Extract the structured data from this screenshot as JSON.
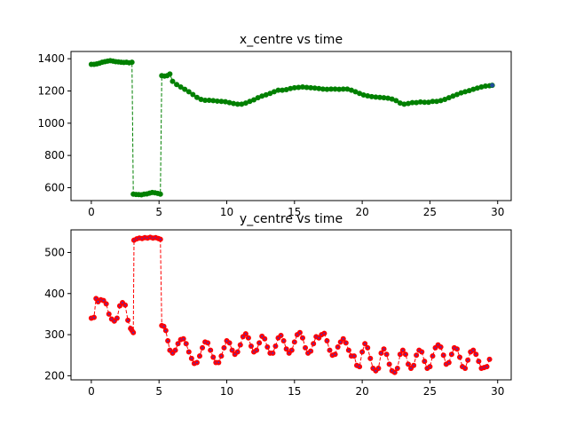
{
  "chart_data": [
    {
      "type": "scatter",
      "title": "x_centre vs time",
      "xlabel": "",
      "ylabel": "",
      "xlim": [
        -1.5,
        31.0
      ],
      "ylim": [
        520,
        1445
      ],
      "xticks": [
        0,
        5,
        10,
        15,
        20,
        25,
        30
      ],
      "yticks": [
        600,
        800,
        1000,
        1200,
        1400
      ],
      "grid": false,
      "colors": {
        "points": "#008000",
        "line": "#008000",
        "end_marker": "#1f4e9c"
      },
      "series": [
        {
          "points": [
            [
              0.0,
              1365
            ],
            [
              0.2,
              1365
            ],
            [
              0.4,
              1368
            ],
            [
              0.6,
              1372
            ],
            [
              0.8,
              1378
            ],
            [
              1.0,
              1382
            ],
            [
              1.2,
              1385
            ],
            [
              1.4,
              1388
            ],
            [
              1.6,
              1385
            ],
            [
              1.8,
              1382
            ],
            [
              2.0,
              1380
            ],
            [
              2.2,
              1378
            ],
            [
              2.4,
              1377
            ],
            [
              2.6,
              1378
            ],
            [
              2.8,
              1375
            ],
            [
              3.0,
              1378
            ],
            [
              3.1,
              560
            ],
            [
              3.3,
              558
            ],
            [
              3.5,
              557
            ],
            [
              3.7,
              556
            ],
            [
              3.9,
              560
            ],
            [
              4.1,
              561
            ],
            [
              4.3,
              566
            ],
            [
              4.5,
              570
            ],
            [
              4.7,
              568
            ],
            [
              4.9,
              565
            ],
            [
              5.1,
              560
            ],
            [
              5.2,
              1295
            ],
            [
              5.4,
              1292
            ],
            [
              5.6,
              1295
            ],
            [
              5.8,
              1305
            ],
            [
              6.0,
              1260
            ],
            [
              6.3,
              1240
            ],
            [
              6.6,
              1225
            ],
            [
              6.9,
              1210
            ],
            [
              7.2,
              1195
            ],
            [
              7.5,
              1178
            ],
            [
              7.8,
              1160
            ],
            [
              8.1,
              1148
            ],
            [
              8.4,
              1142
            ],
            [
              8.7,
              1142
            ],
            [
              9.0,
              1140
            ],
            [
              9.3,
              1137
            ],
            [
              9.6,
              1135
            ],
            [
              9.9,
              1133
            ],
            [
              10.2,
              1128
            ],
            [
              10.5,
              1122
            ],
            [
              10.8,
              1118
            ],
            [
              11.1,
              1118
            ],
            [
              11.4,
              1125
            ],
            [
              11.7,
              1135
            ],
            [
              12.0,
              1145
            ],
            [
              12.3,
              1158
            ],
            [
              12.6,
              1168
            ],
            [
              12.9,
              1176
            ],
            [
              13.2,
              1185
            ],
            [
              13.5,
              1195
            ],
            [
              13.8,
              1205
            ],
            [
              14.1,
              1205
            ],
            [
              14.4,
              1208
            ],
            [
              14.7,
              1215
            ],
            [
              15.0,
              1220
            ],
            [
              15.3,
              1222
            ],
            [
              15.6,
              1225
            ],
            [
              15.9,
              1222
            ],
            [
              16.2,
              1220
            ],
            [
              16.5,
              1218
            ],
            [
              16.8,
              1215
            ],
            [
              17.1,
              1212
            ],
            [
              17.4,
              1210
            ],
            [
              17.7,
              1212
            ],
            [
              18.0,
              1212
            ],
            [
              18.3,
              1210
            ],
            [
              18.6,
              1212
            ],
            [
              18.9,
              1212
            ],
            [
              19.2,
              1205
            ],
            [
              19.5,
              1195
            ],
            [
              19.8,
              1185
            ],
            [
              20.1,
              1175
            ],
            [
              20.4,
              1170
            ],
            [
              20.7,
              1165
            ],
            [
              21.0,
              1162
            ],
            [
              21.3,
              1160
            ],
            [
              21.6,
              1158
            ],
            [
              21.9,
              1155
            ],
            [
              22.2,
              1150
            ],
            [
              22.5,
              1140
            ],
            [
              22.8,
              1125
            ],
            [
              23.1,
              1118
            ],
            [
              23.4,
              1122
            ],
            [
              23.7,
              1128
            ],
            [
              24.0,
              1128
            ],
            [
              24.3,
              1132
            ],
            [
              24.6,
              1130
            ],
            [
              24.9,
              1130
            ],
            [
              25.2,
              1135
            ],
            [
              25.5,
              1135
            ],
            [
              25.8,
              1140
            ],
            [
              26.1,
              1148
            ],
            [
              26.4,
              1158
            ],
            [
              26.7,
              1168
            ],
            [
              27.0,
              1178
            ],
            [
              27.3,
              1188
            ],
            [
              27.6,
              1195
            ],
            [
              27.9,
              1202
            ],
            [
              28.2,
              1210
            ],
            [
              28.5,
              1218
            ],
            [
              28.8,
              1225
            ],
            [
              29.1,
              1230
            ],
            [
              29.4,
              1232
            ],
            [
              29.6,
              1235
            ]
          ]
        }
      ]
    },
    {
      "type": "scatter",
      "title": "y_centre vs time",
      "xlabel": "",
      "ylabel": "",
      "xlim": [
        -1.5,
        31.0
      ],
      "ylim": [
        190,
        555
      ],
      "xticks": [
        0,
        5,
        10,
        15,
        20,
        25,
        30
      ],
      "yticks": [
        200,
        300,
        400,
        500
      ],
      "grid": false,
      "colors": {
        "points": "#ff0000",
        "line": "#ff0000",
        "inner_marker": "#4b2cc0"
      },
      "series": [
        {
          "points": [
            [
              0.0,
              340
            ],
            [
              0.2,
              342
            ],
            [
              0.35,
              388
            ],
            [
              0.5,
              380
            ],
            [
              0.7,
              385
            ],
            [
              0.9,
              383
            ],
            [
              1.1,
              375
            ],
            [
              1.3,
              350
            ],
            [
              1.5,
              338
            ],
            [
              1.7,
              333
            ],
            [
              1.9,
              340
            ],
            [
              2.1,
              370
            ],
            [
              2.3,
              378
            ],
            [
              2.5,
              372
            ],
            [
              2.7,
              335
            ],
            [
              2.9,
              315
            ],
            [
              3.0,
              310
            ],
            [
              3.1,
              305
            ],
            [
              3.15,
              530
            ],
            [
              3.35,
              533
            ],
            [
              3.55,
              535
            ],
            [
              3.75,
              534
            ],
            [
              3.95,
              536
            ],
            [
              4.15,
              535
            ],
            [
              4.35,
              537
            ],
            [
              4.55,
              535
            ],
            [
              4.75,
              536
            ],
            [
              4.95,
              534
            ],
            [
              5.1,
              532
            ],
            [
              5.2,
              322
            ],
            [
              5.35,
              320
            ],
            [
              5.5,
              310
            ],
            [
              5.65,
              285
            ],
            [
              5.8,
              262
            ],
            [
              6.0,
              255
            ],
            [
              6.2,
              262
            ],
            [
              6.4,
              278
            ],
            [
              6.6,
              288
            ],
            [
              6.8,
              290
            ],
            [
              7.0,
              278
            ],
            [
              7.2,
              258
            ],
            [
              7.4,
              242
            ],
            [
              7.6,
              230
            ],
            [
              7.8,
              232
            ],
            [
              8.0,
              248
            ],
            [
              8.2,
              268
            ],
            [
              8.4,
              282
            ],
            [
              8.6,
              280
            ],
            [
              8.8,
              262
            ],
            [
              9.0,
              245
            ],
            [
              9.2,
              232
            ],
            [
              9.4,
              232
            ],
            [
              9.6,
              248
            ],
            [
              9.8,
              268
            ],
            [
              10.0,
              285
            ],
            [
              10.2,
              280
            ],
            [
              10.4,
              262
            ],
            [
              10.6,
              252
            ],
            [
              10.8,
              258
            ],
            [
              11.0,
              275
            ],
            [
              11.2,
              295
            ],
            [
              11.4,
              302
            ],
            [
              11.6,
              292
            ],
            [
              11.8,
              272
            ],
            [
              12.0,
              258
            ],
            [
              12.2,
              262
            ],
            [
              12.4,
              280
            ],
            [
              12.6,
              296
            ],
            [
              12.8,
              290
            ],
            [
              13.0,
              270
            ],
            [
              13.2,
              255
            ],
            [
              13.4,
              255
            ],
            [
              13.6,
              272
            ],
            [
              13.8,
              292
            ],
            [
              14.0,
              298
            ],
            [
              14.2,
              285
            ],
            [
              14.4,
              265
            ],
            [
              14.6,
              255
            ],
            [
              14.8,
              262
            ],
            [
              15.0,
              282
            ],
            [
              15.2,
              300
            ],
            [
              15.4,
              305
            ],
            [
              15.6,
              292
            ],
            [
              15.8,
              268
            ],
            [
              16.0,
              255
            ],
            [
              16.2,
              260
            ],
            [
              16.4,
              278
            ],
            [
              16.6,
              295
            ],
            [
              16.8,
              292
            ],
            [
              17.0,
              300
            ],
            [
              17.2,
              303
            ],
            [
              17.4,
              285
            ],
            [
              17.6,
              262
            ],
            [
              17.8,
              250
            ],
            [
              18.0,
              252
            ],
            [
              18.2,
              270
            ],
            [
              18.4,
              282
            ],
            [
              18.6,
              290
            ],
            [
              18.8,
              280
            ],
            [
              19.0,
              262
            ],
            [
              19.2,
              248
            ],
            [
              19.4,
              248
            ],
            [
              19.6,
              225
            ],
            [
              19.8,
              222
            ],
            [
              20.0,
              258
            ],
            [
              20.2,
              278
            ],
            [
              20.4,
              268
            ],
            [
              20.6,
              242
            ],
            [
              20.8,
              218
            ],
            [
              21.0,
              212
            ],
            [
              21.2,
              218
            ],
            [
              21.4,
              255
            ],
            [
              21.6,
              265
            ],
            [
              21.8,
              252
            ],
            [
              22.0,
              228
            ],
            [
              22.2,
              212
            ],
            [
              22.4,
              208
            ],
            [
              22.6,
              218
            ],
            [
              22.8,
              252
            ],
            [
              23.0,
              262
            ],
            [
              23.2,
              252
            ],
            [
              23.4,
              228
            ],
            [
              23.6,
              218
            ],
            [
              23.8,
              225
            ],
            [
              24.0,
              250
            ],
            [
              24.2,
              262
            ],
            [
              24.4,
              258
            ],
            [
              24.6,
              235
            ],
            [
              24.8,
              218
            ],
            [
              25.0,
              222
            ],
            [
              25.2,
              248
            ],
            [
              25.4,
              268
            ],
            [
              25.6,
              275
            ],
            [
              25.8,
              270
            ],
            [
              26.0,
              250
            ],
            [
              26.2,
              228
            ],
            [
              26.4,
              232
            ],
            [
              26.6,
              252
            ],
            [
              26.8,
              268
            ],
            [
              27.0,
              265
            ],
            [
              27.2,
              245
            ],
            [
              27.4,
              222
            ],
            [
              27.6,
              218
            ],
            [
              27.8,
              238
            ],
            [
              28.0,
              258
            ],
            [
              28.2,
              262
            ],
            [
              28.4,
              252
            ],
            [
              28.6,
              235
            ],
            [
              28.8,
              218
            ],
            [
              29.0,
              220
            ],
            [
              29.2,
              222
            ],
            [
              29.4,
              240
            ]
          ]
        }
      ]
    }
  ]
}
